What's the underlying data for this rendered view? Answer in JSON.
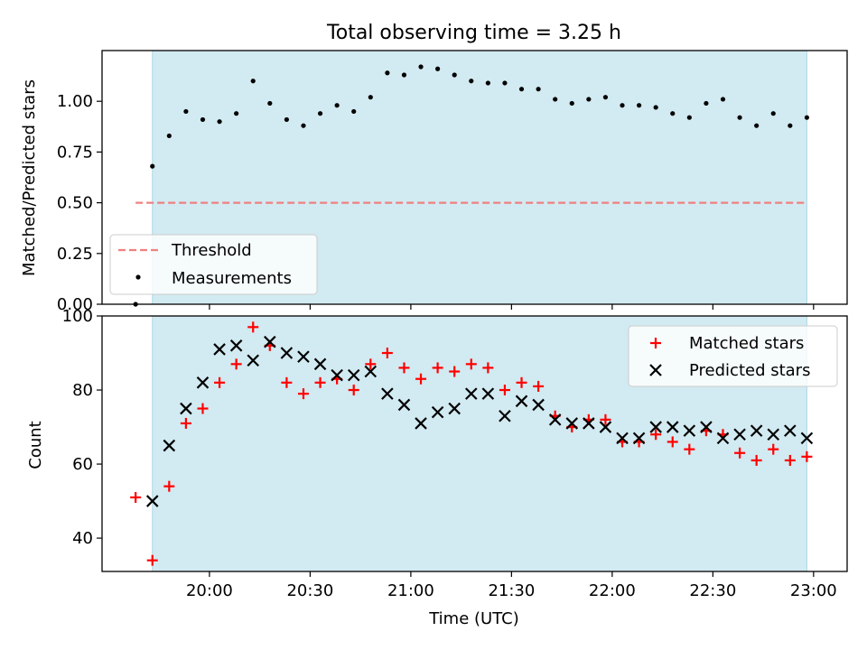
{
  "chart_data": [
    {
      "type": "scatter",
      "title": "Total observing time = 3.25 h",
      "ylabel": "Matched/Predicted stars",
      "ylim": [
        0,
        1.25
      ],
      "yticks": [
        0.0,
        0.25,
        0.5,
        0.75,
        1.0
      ],
      "ytick_labels": [
        "0.00",
        "0.25",
        "0.50",
        "0.75",
        "1.00"
      ],
      "xlim_minutes": [
        1168,
        1390
      ],
      "xticks_minutes": [
        1200,
        1230,
        1260,
        1290,
        1320,
        1350,
        1380
      ],
      "shaded_span_minutes": [
        1183,
        1378
      ],
      "threshold": {
        "name": "Threshold",
        "y": 0.5,
        "x_minutes": [
          1178,
          1378
        ],
        "color": "#f08080"
      },
      "series": [
        {
          "name": "Measurements",
          "color": "#000000",
          "x_minutes": [
            1178,
            1183,
            1188,
            1193,
            1198,
            1203,
            1208,
            1213,
            1218,
            1223,
            1228,
            1233,
            1238,
            1243,
            1248,
            1253,
            1258,
            1263,
            1268,
            1273,
            1278,
            1283,
            1288,
            1293,
            1298,
            1303,
            1308,
            1313,
            1318,
            1323,
            1328,
            1333,
            1338,
            1343,
            1348,
            1353,
            1358,
            1363,
            1368,
            1373,
            1378
          ],
          "values": [
            0.0,
            0.68,
            0.83,
            0.95,
            0.91,
            0.9,
            0.94,
            1.1,
            0.99,
            0.91,
            0.88,
            0.94,
            0.98,
            0.95,
            1.02,
            1.14,
            1.13,
            1.17,
            1.16,
            1.13,
            1.1,
            1.09,
            1.09,
            1.06,
            1.06,
            1.01,
            0.99,
            1.01,
            1.02,
            0.98,
            0.98,
            0.97,
            0.94,
            0.92,
            0.99,
            1.01,
            0.92,
            0.88,
            0.94,
            0.88,
            0.92
          ]
        }
      ],
      "legend": "lower-left"
    },
    {
      "type": "scatter",
      "xlabel": "Time (UTC)",
      "ylabel": "Count",
      "ylim": [
        31,
        100
      ],
      "yticks": [
        40,
        60,
        80,
        100
      ],
      "ytick_labels": [
        "40",
        "60",
        "80",
        "100"
      ],
      "xlim_minutes": [
        1168,
        1390
      ],
      "xticks_minutes": [
        1200,
        1230,
        1260,
        1290,
        1320,
        1350,
        1380
      ],
      "xtick_labels": [
        "20:00",
        "20:30",
        "21:00",
        "21:30",
        "22:00",
        "22:30",
        "23:00"
      ],
      "shaded_span_minutes": [
        1183,
        1378
      ],
      "series": [
        {
          "name": "Matched stars",
          "marker": "plus",
          "color": "#ff0000",
          "x_minutes": [
            1178,
            1183,
            1188,
            1193,
            1198,
            1203,
            1208,
            1213,
            1218,
            1223,
            1228,
            1233,
            1238,
            1243,
            1248,
            1253,
            1258,
            1263,
            1268,
            1273,
            1278,
            1283,
            1288,
            1293,
            1298,
            1303,
            1308,
            1313,
            1318,
            1323,
            1328,
            1333,
            1338,
            1343,
            1348,
            1353,
            1358,
            1363,
            1368,
            1373,
            1378
          ],
          "values": [
            51,
            34,
            54,
            71,
            75,
            82,
            87,
            97,
            92,
            82,
            79,
            82,
            83,
            80,
            87,
            90,
            86,
            83,
            86,
            85,
            87,
            86,
            80,
            82,
            81,
            73,
            70,
            72,
            72,
            66,
            66,
            68,
            66,
            64,
            69,
            68,
            63,
            61,
            64,
            61,
            62
          ]
        },
        {
          "name": "Predicted stars",
          "marker": "x",
          "color": "#000000",
          "x_minutes": [
            1183,
            1188,
            1193,
            1198,
            1203,
            1208,
            1213,
            1218,
            1223,
            1228,
            1233,
            1238,
            1243,
            1248,
            1253,
            1258,
            1263,
            1268,
            1273,
            1278,
            1283,
            1288,
            1293,
            1298,
            1303,
            1308,
            1313,
            1318,
            1323,
            1328,
            1333,
            1338,
            1343,
            1348,
            1353,
            1358,
            1363,
            1368,
            1373,
            1378
          ],
          "values": [
            50,
            65,
            75,
            82,
            91,
            92,
            88,
            93,
            90,
            89,
            87,
            84,
            84,
            85,
            79,
            76,
            71,
            74,
            75,
            79,
            79,
            73,
            77,
            76,
            72,
            71,
            71,
            70,
            67,
            67,
            70,
            70,
            69,
            70,
            67,
            68,
            69,
            68,
            69,
            67
          ]
        }
      ],
      "legend": "upper-right"
    }
  ],
  "colors": {
    "span": "#add8e6",
    "threshold": "#f08080",
    "matched": "#ff0000",
    "predicted": "#000000"
  }
}
